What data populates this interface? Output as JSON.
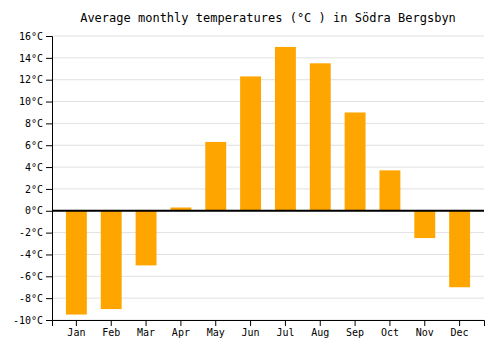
{
  "chart_data": {
    "type": "bar",
    "title": "Average monthly temperatures (°C ) in Södra Bergsbyn",
    "categories": [
      "Jan",
      "Feb",
      "Mar",
      "Apr",
      "May",
      "Jun",
      "Jul",
      "Aug",
      "Sep",
      "Oct",
      "Nov",
      "Dec"
    ],
    "values": [
      -9.5,
      -9.0,
      -5.0,
      0.3,
      6.3,
      12.3,
      15.0,
      13.5,
      9.0,
      3.7,
      -2.5,
      -7.0
    ],
    "color": "#FFA500",
    "ylim": [
      -10,
      16
    ],
    "yticks": [
      {
        "value": -10,
        "label": "-10°C"
      },
      {
        "value": -8,
        "label": "-8°C"
      },
      {
        "value": -6,
        "label": "-6°C"
      },
      {
        "value": -4,
        "label": "-4°C"
      },
      {
        "value": -2,
        "label": "-2°C"
      },
      {
        "value": 0,
        "label": "0°C"
      },
      {
        "value": 2,
        "label": "2°C"
      },
      {
        "value": 4,
        "label": "4°C"
      },
      {
        "value": 6,
        "label": "6°C"
      },
      {
        "value": 8,
        "label": "8°C"
      },
      {
        "value": 10,
        "label": "10°C"
      },
      {
        "value": 12,
        "label": "12°C"
      },
      {
        "value": 14,
        "label": "14°C"
      },
      {
        "value": 16,
        "label": "16°C"
      }
    ],
    "grid": true
  }
}
